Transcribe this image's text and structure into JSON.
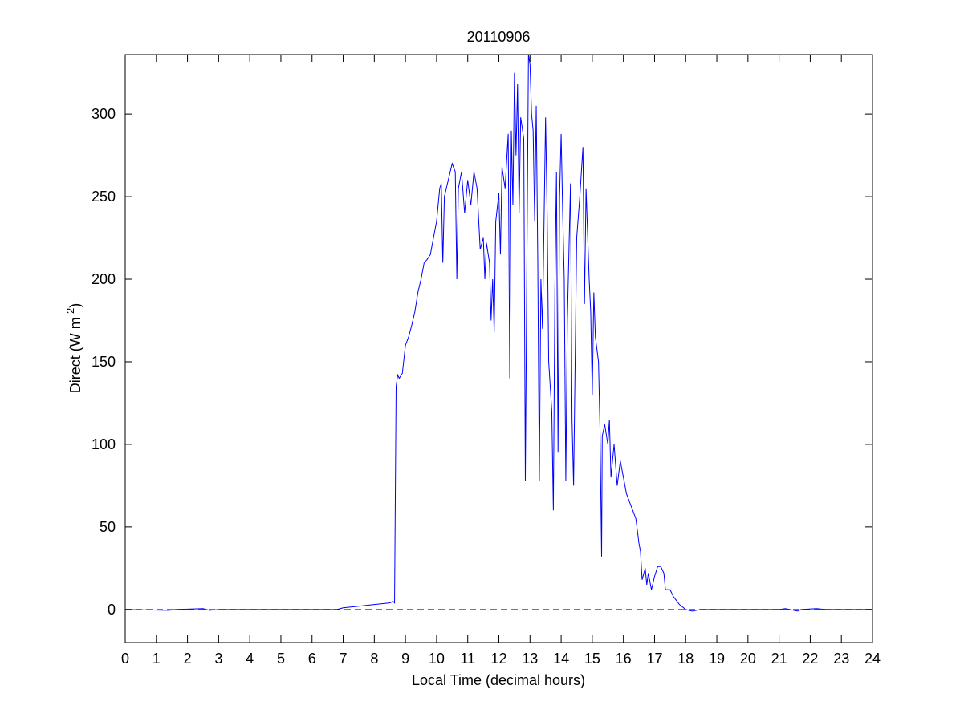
{
  "chart_data": {
    "type": "line",
    "title": "20110906",
    "x_label": "Local Time (decimal hours)",
    "y_label": {
      "text": "Direct (W m",
      "superscript": "-2",
      "suffix": ")"
    },
    "color": "#0000ff",
    "reference_line": {
      "value": 0,
      "color": "#ff0000",
      "dashed": true
    },
    "x": [
      0,
      1.4,
      1.6,
      2.5,
      2.7,
      3,
      6.8,
      7,
      7.5,
      8,
      8.5,
      8.6,
      8.65,
      8.7,
      8.75,
      8.8,
      8.9,
      9.0,
      9.1,
      9.2,
      9.3,
      9.4,
      9.5,
      9.6,
      9.7,
      9.8,
      9.9,
      10.0,
      10.1,
      10.15,
      10.2,
      10.25,
      10.4,
      10.5,
      10.6,
      10.65,
      10.7,
      10.8,
      10.9,
      11.0,
      11.1,
      11.2,
      11.3,
      11.4,
      11.5,
      11.55,
      11.6,
      11.7,
      11.75,
      11.8,
      11.85,
      11.9,
      12.0,
      12.05,
      12.1,
      12.2,
      12.3,
      12.35,
      12.4,
      12.45,
      12.5,
      12.55,
      12.6,
      12.65,
      12.7,
      12.8,
      12.85,
      12.9,
      12.95,
      13.0,
      13.05,
      13.1,
      13.15,
      13.2,
      13.25,
      13.3,
      13.35,
      13.4,
      13.5,
      13.55,
      13.6,
      13.7,
      13.75,
      13.8,
      13.85,
      13.9,
      13.95,
      14.0,
      14.05,
      14.1,
      14.15,
      14.2,
      14.3,
      14.35,
      14.4,
      14.5,
      14.6,
      14.7,
      14.75,
      14.8,
      14.9,
      14.95,
      15.0,
      15.05,
      15.1,
      15.2,
      15.25,
      15.3,
      15.32,
      15.4,
      15.5,
      15.55,
      15.6,
      15.7,
      15.8,
      15.9,
      16.0,
      16.1,
      16.2,
      16.3,
      16.4,
      16.5,
      16.55,
      16.6,
      16.7,
      16.75,
      16.8,
      16.9,
      17.0,
      17.1,
      17.2,
      17.3,
      17.35,
      17.5,
      17.6,
      17.8,
      18.0,
      18.2,
      18.5,
      21,
      21.2,
      21.6,
      21.7,
      22.2,
      22.5,
      24
    ],
    "values": [
      0,
      -0.5,
      0,
      0.5,
      -0.5,
      0,
      0,
      1,
      2,
      3,
      4,
      5,
      4,
      135,
      142,
      140,
      143,
      160,
      165,
      172,
      180,
      192,
      200,
      210,
      212,
      215,
      225,
      235,
      255,
      258,
      210,
      250,
      262,
      270,
      265,
      200,
      255,
      265,
      240,
      260,
      245,
      265,
      255,
      218,
      225,
      200,
      222,
      210,
      175,
      200,
      168,
      235,
      252,
      215,
      268,
      255,
      288,
      140,
      290,
      245,
      325,
      275,
      318,
      240,
      298,
      285,
      78,
      210,
      336,
      330,
      300,
      290,
      235,
      305,
      210,
      78,
      200,
      170,
      298,
      240,
      150,
      120,
      60,
      195,
      265,
      95,
      250,
      288,
      240,
      200,
      78,
      175,
      258,
      115,
      75,
      225,
      250,
      280,
      185,
      255,
      200,
      180,
      130,
      192,
      165,
      150,
      108,
      32,
      105,
      112,
      100,
      115,
      80,
      100,
      75,
      90,
      80,
      70,
      65,
      60,
      55,
      40,
      35,
      18,
      25,
      15,
      22,
      12,
      20,
      26,
      26,
      22,
      12,
      12,
      8,
      3,
      0,
      -1,
      0,
      0,
      0.5,
      -1,
      0,
      0.5,
      0,
      0
    ],
    "xlim": [
      0,
      24
    ],
    "xticks": [
      0,
      1,
      2,
      3,
      4,
      5,
      6,
      7,
      8,
      9,
      10,
      11,
      12,
      13,
      14,
      15,
      16,
      17,
      18,
      19,
      20,
      21,
      22,
      23,
      24
    ],
    "ylim": [
      -20,
      336
    ],
    "yticks": [
      0,
      50,
      100,
      150,
      200,
      250,
      300
    ],
    "grid": false
  }
}
